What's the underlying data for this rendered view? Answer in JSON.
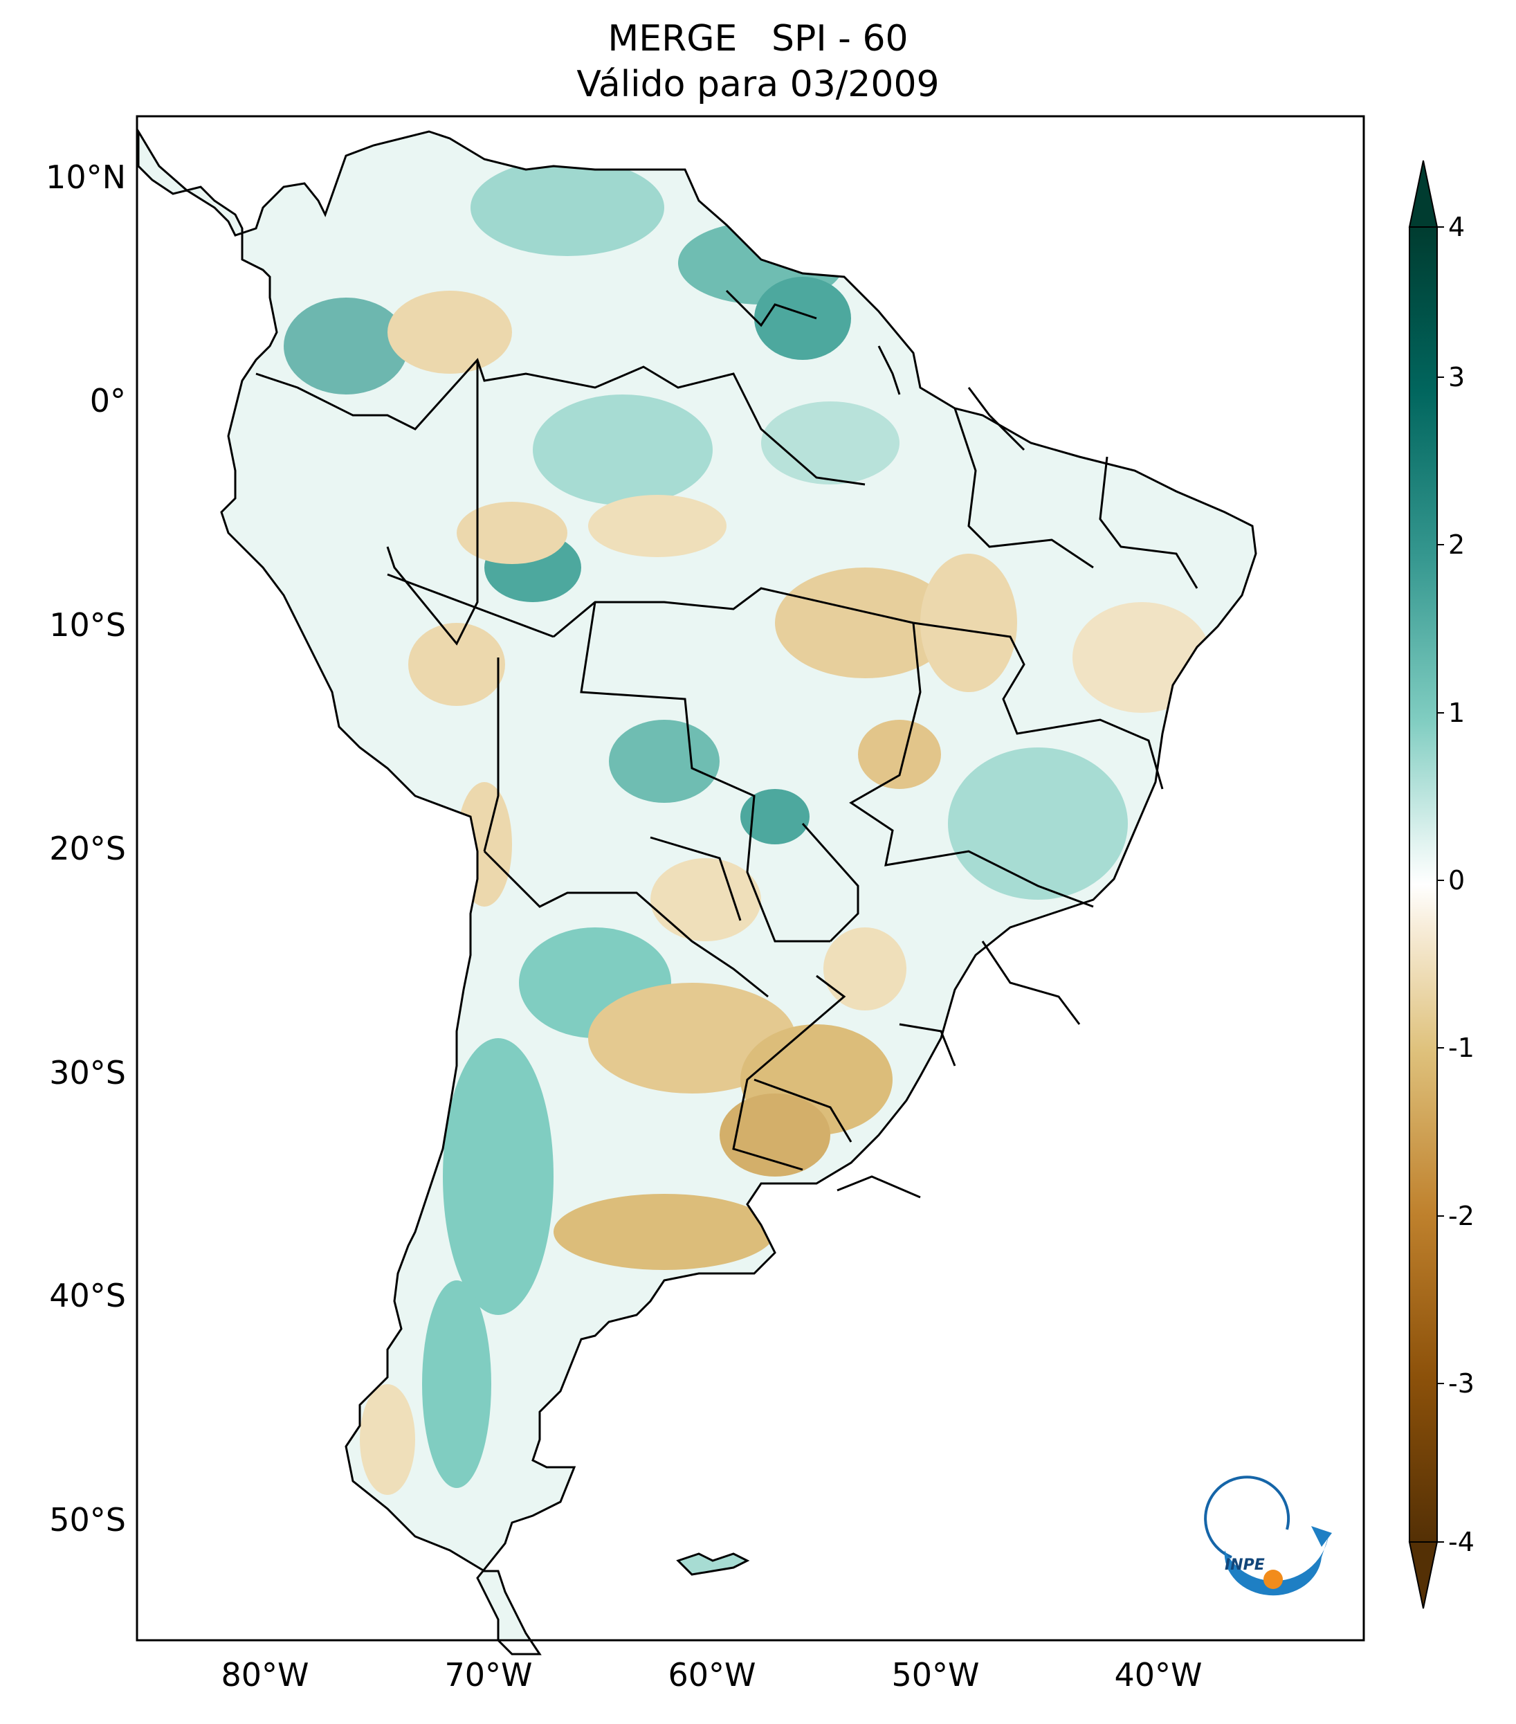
{
  "title": {
    "line1": "MERGE   SPI - 60",
    "line2": "Válido para 03/2009"
  },
  "map": {
    "lat_labels": [
      "10°N",
      "0°",
      "10°S",
      "20°S",
      "30°S",
      "40°S",
      "50°S"
    ],
    "lon_labels": [
      "80°W",
      "70°W",
      "60°W",
      "50°W",
      "40°W"
    ]
  },
  "colorbar": {
    "ticks": [
      "4",
      "3",
      "2",
      "1",
      "0",
      "-1",
      "-2",
      "-3",
      "-4"
    ],
    "colors": {
      "wet_extreme": "#003c30",
      "wet_strong": "#01665e",
      "wet_moderate": "#35978f",
      "wet_light": "#80cdc1",
      "wet_faint": "#c7eae5",
      "neutral": "#f5f5f5",
      "dry_faint": "#f6e8c3",
      "dry_light": "#dfc27d",
      "dry_moderate": "#bf812d",
      "dry_strong": "#8c510a",
      "dry_extreme": "#543005"
    }
  },
  "logo": {
    "text": "INPE"
  }
}
